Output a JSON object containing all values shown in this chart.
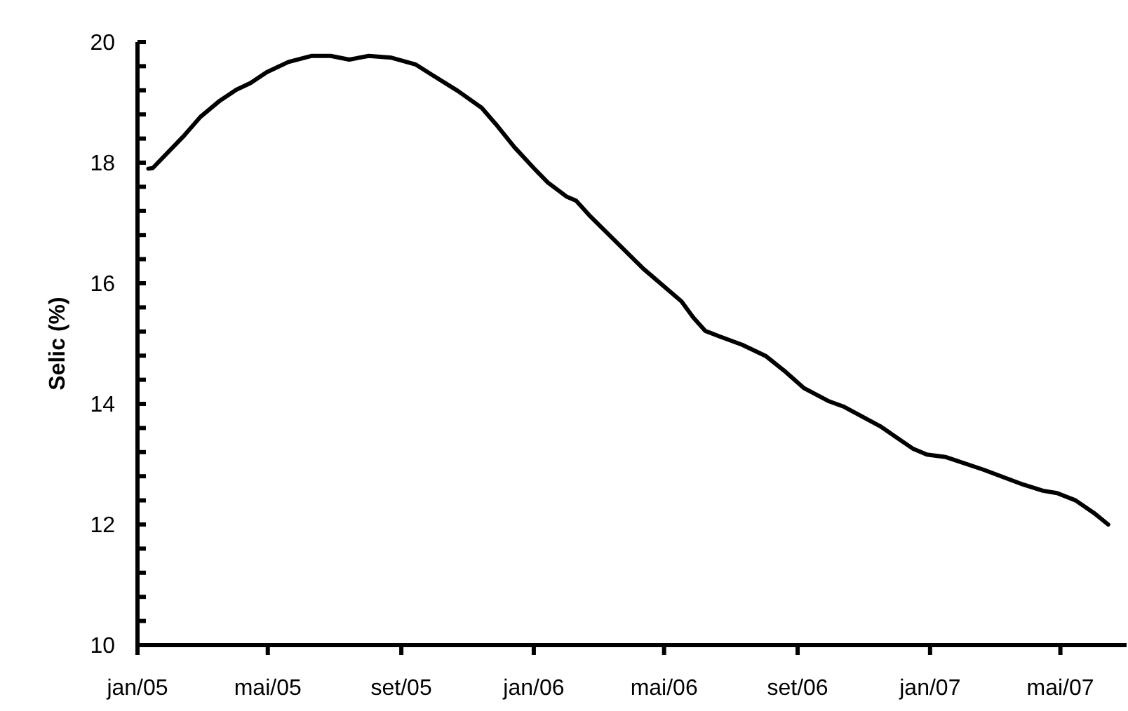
{
  "chart_data": {
    "type": "line",
    "ylabel": "Selic (%)",
    "x": [
      "2005-01-11",
      "2005-01-15",
      "2005-02-13",
      "2005-02-28",
      "2005-03-18",
      "2005-04-02",
      "2005-04-15",
      "2005-04-30",
      "2005-05-20",
      "2005-06-10",
      "2005-06-28",
      "2005-07-15",
      "2005-08-02",
      "2005-08-23",
      "2005-09-14",
      "2005-09-29",
      "2005-10-23",
      "2005-11-14",
      "2005-11-27",
      "2005-12-14",
      "2006-01-01",
      "2006-01-14",
      "2006-01-31",
      "2006-02-09",
      "2006-02-21",
      "2006-04-12",
      "2006-05-17",
      "2006-05-28",
      "2006-06-08",
      "2006-06-21",
      "2006-07-12",
      "2006-08-03",
      "2006-08-21",
      "2006-09-07",
      "2006-09-29",
      "2006-10-14",
      "2006-11-16",
      "2006-12-16",
      "2006-12-29",
      "2007-01-15",
      "2007-02-19",
      "2007-03-28",
      "2007-04-15",
      "2007-04-28",
      "2007-05-15",
      "2007-06-01",
      "2007-06-14"
    ],
    "series": [
      {
        "color": "#000000",
        "values": [
          17.9,
          17.91,
          18.45,
          18.76,
          19.03,
          19.21,
          19.32,
          19.5,
          19.67,
          19.77,
          19.77,
          19.71,
          19.77,
          19.74,
          19.63,
          19.46,
          19.19,
          18.91,
          18.64,
          18.26,
          17.91,
          17.67,
          17.44,
          17.37,
          17.13,
          16.24,
          15.7,
          15.43,
          15.21,
          15.12,
          14.98,
          14.79,
          14.53,
          14.26,
          14.05,
          13.95,
          13.63,
          13.26,
          13.16,
          13.12,
          12.91,
          12.66,
          12.56,
          12.52,
          12.4,
          12.19,
          12.0
        ]
      }
    ],
    "xlim": [
      "2005-01-01",
      "2007-07-01"
    ],
    "xticks": [
      {
        "value": "2005-01-01",
        "label": "jan/05"
      },
      {
        "value": "2005-05-01",
        "label": "mai/05"
      },
      {
        "value": "2005-09-01",
        "label": "set/05"
      },
      {
        "value": "2006-01-01",
        "label": "jan/06"
      },
      {
        "value": "2006-05-01",
        "label": "mai/06"
      },
      {
        "value": "2006-09-01",
        "label": "set/06"
      },
      {
        "value": "2007-01-01",
        "label": "jan/07"
      },
      {
        "value": "2007-05-01",
        "label": "mai/07"
      }
    ],
    "ylim": [
      10,
      20
    ],
    "yticks": [
      10,
      {
        "value": 10.4,
        "label": null
      },
      {
        "value": 10.8,
        "label": null
      },
      {
        "value": 11.2,
        "label": null
      },
      {
        "value": 11.6,
        "label": null
      },
      12,
      {
        "value": 12.4,
        "label": null
      },
      {
        "value": 12.8,
        "label": null
      },
      {
        "value": 13.2,
        "label": null
      },
      {
        "value": 13.6,
        "label": null
      },
      14,
      {
        "value": 14.4,
        "label": null
      },
      {
        "value": 14.8,
        "label": null
      },
      {
        "value": 15.2,
        "label": null
      },
      {
        "value": 15.6,
        "label": null
      },
      16,
      {
        "value": 16.4,
        "label": null
      },
      {
        "value": 16.8,
        "label": null
      },
      {
        "value": 17.2,
        "label": null
      },
      {
        "value": 17.6,
        "label": null
      },
      18,
      {
        "value": 18.4,
        "label": null
      },
      {
        "value": 18.8,
        "label": null
      },
      {
        "value": 19.2,
        "label": null
      },
      {
        "value": 19.6,
        "label": null
      },
      20
    ],
    "grid": false,
    "marker": "none",
    "line_style": "solid"
  }
}
